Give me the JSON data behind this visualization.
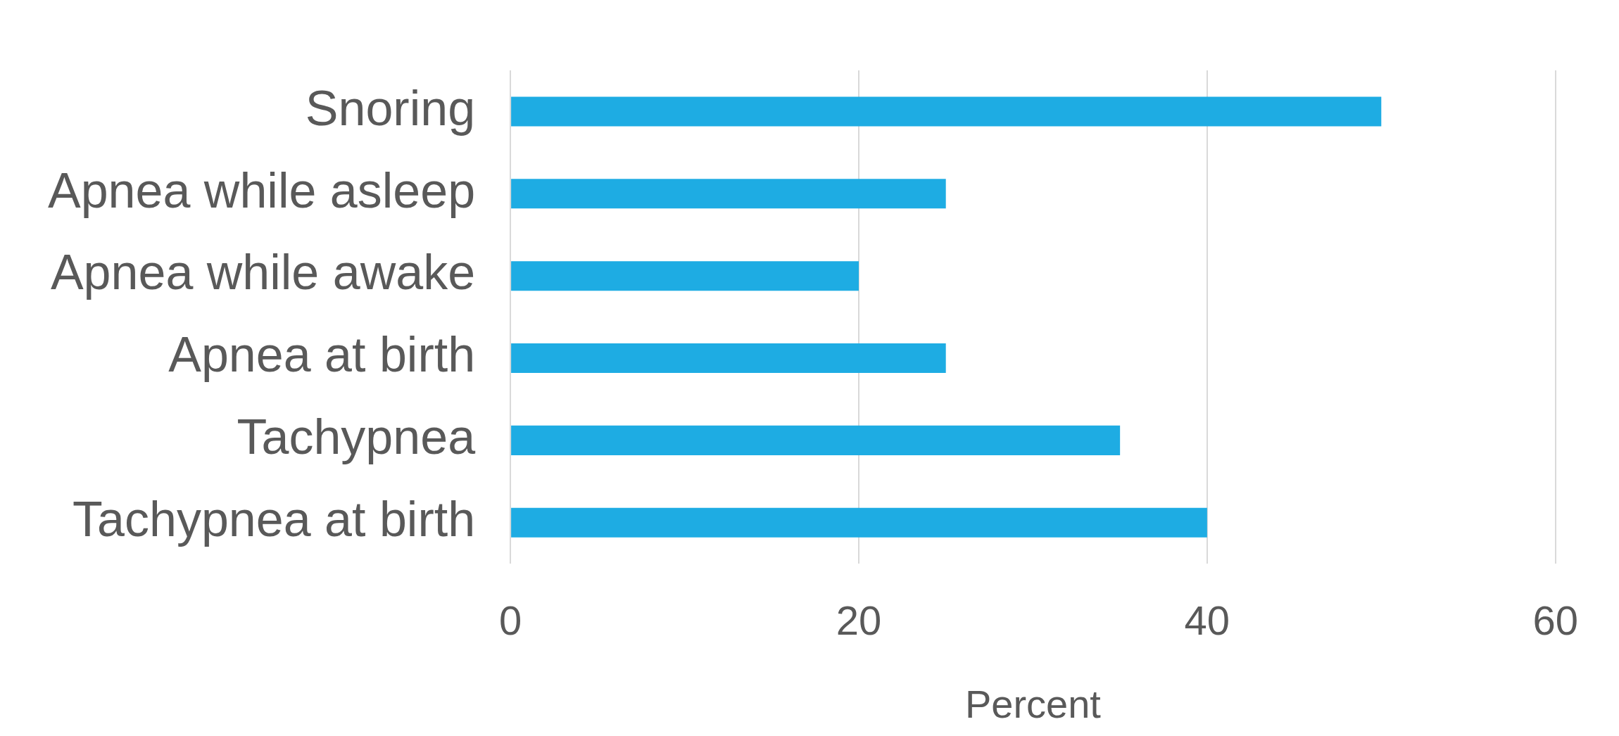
{
  "chart_data": {
    "type": "bar",
    "orientation": "horizontal",
    "categories": [
      "Snoring",
      "Apnea while asleep",
      "Apnea while awake",
      "Apnea at birth",
      "Tachypnea",
      "Tachypnea at birth"
    ],
    "values": [
      50,
      25,
      20,
      25,
      35,
      40
    ],
    "color": "#1eace3",
    "xlabel": "Percent",
    "xlim": [
      0,
      60
    ],
    "xticks": [
      0,
      20,
      40,
      60
    ],
    "grid": "x",
    "legend": false
  }
}
